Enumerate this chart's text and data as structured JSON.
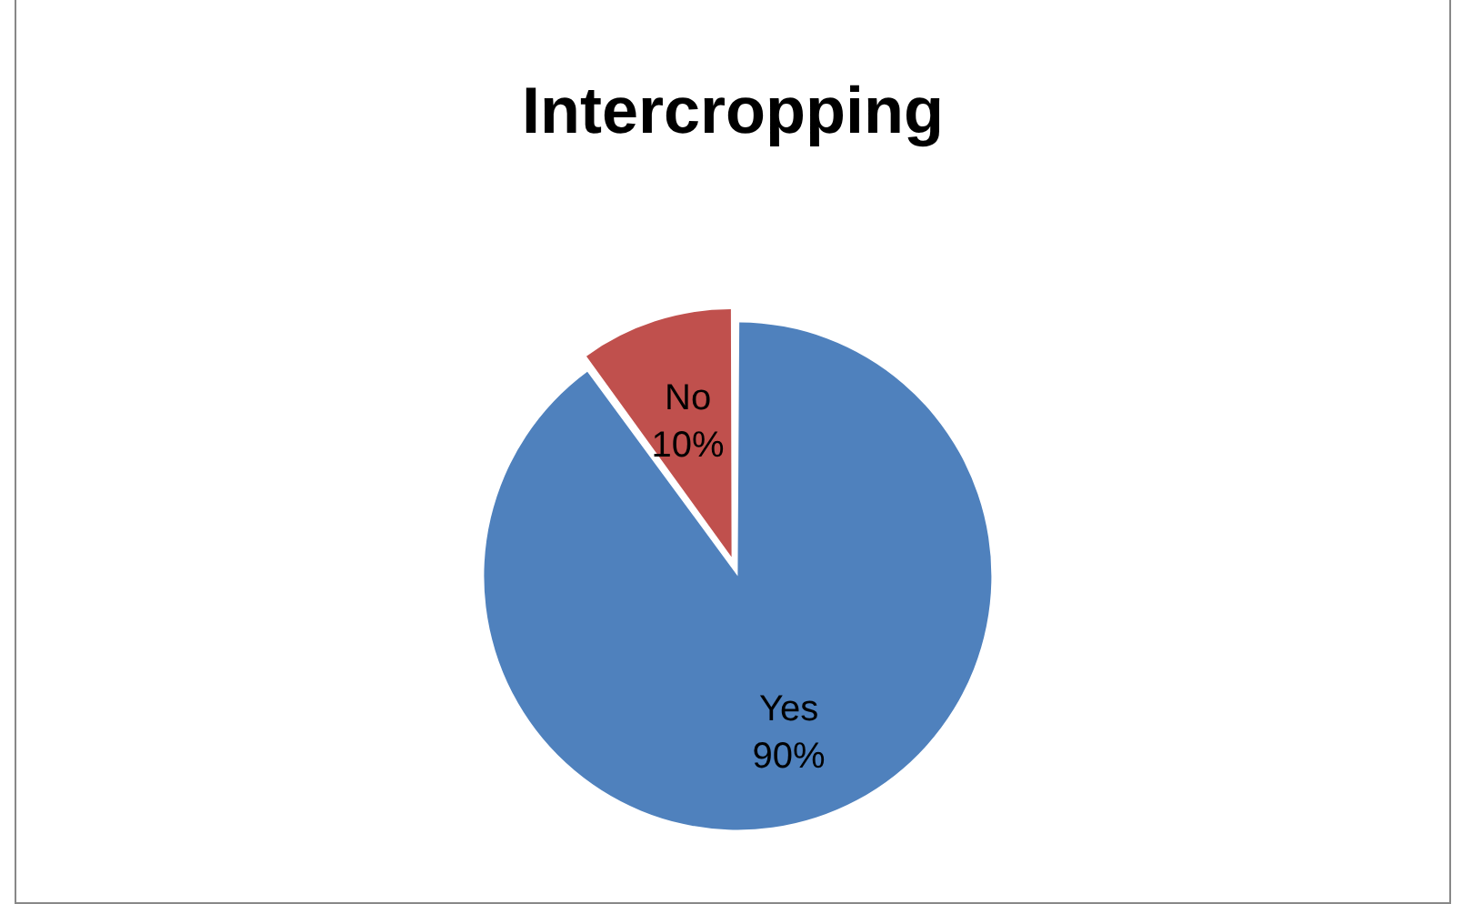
{
  "chart_data": {
    "type": "pie",
    "title": "Intercropping",
    "categories": [
      "Yes",
      "No"
    ],
    "values": [
      90,
      10
    ],
    "colors": [
      "#4f81bd",
      "#c0504d"
    ],
    "value_labels": [
      "90%",
      "10%"
    ],
    "legend": false
  }
}
